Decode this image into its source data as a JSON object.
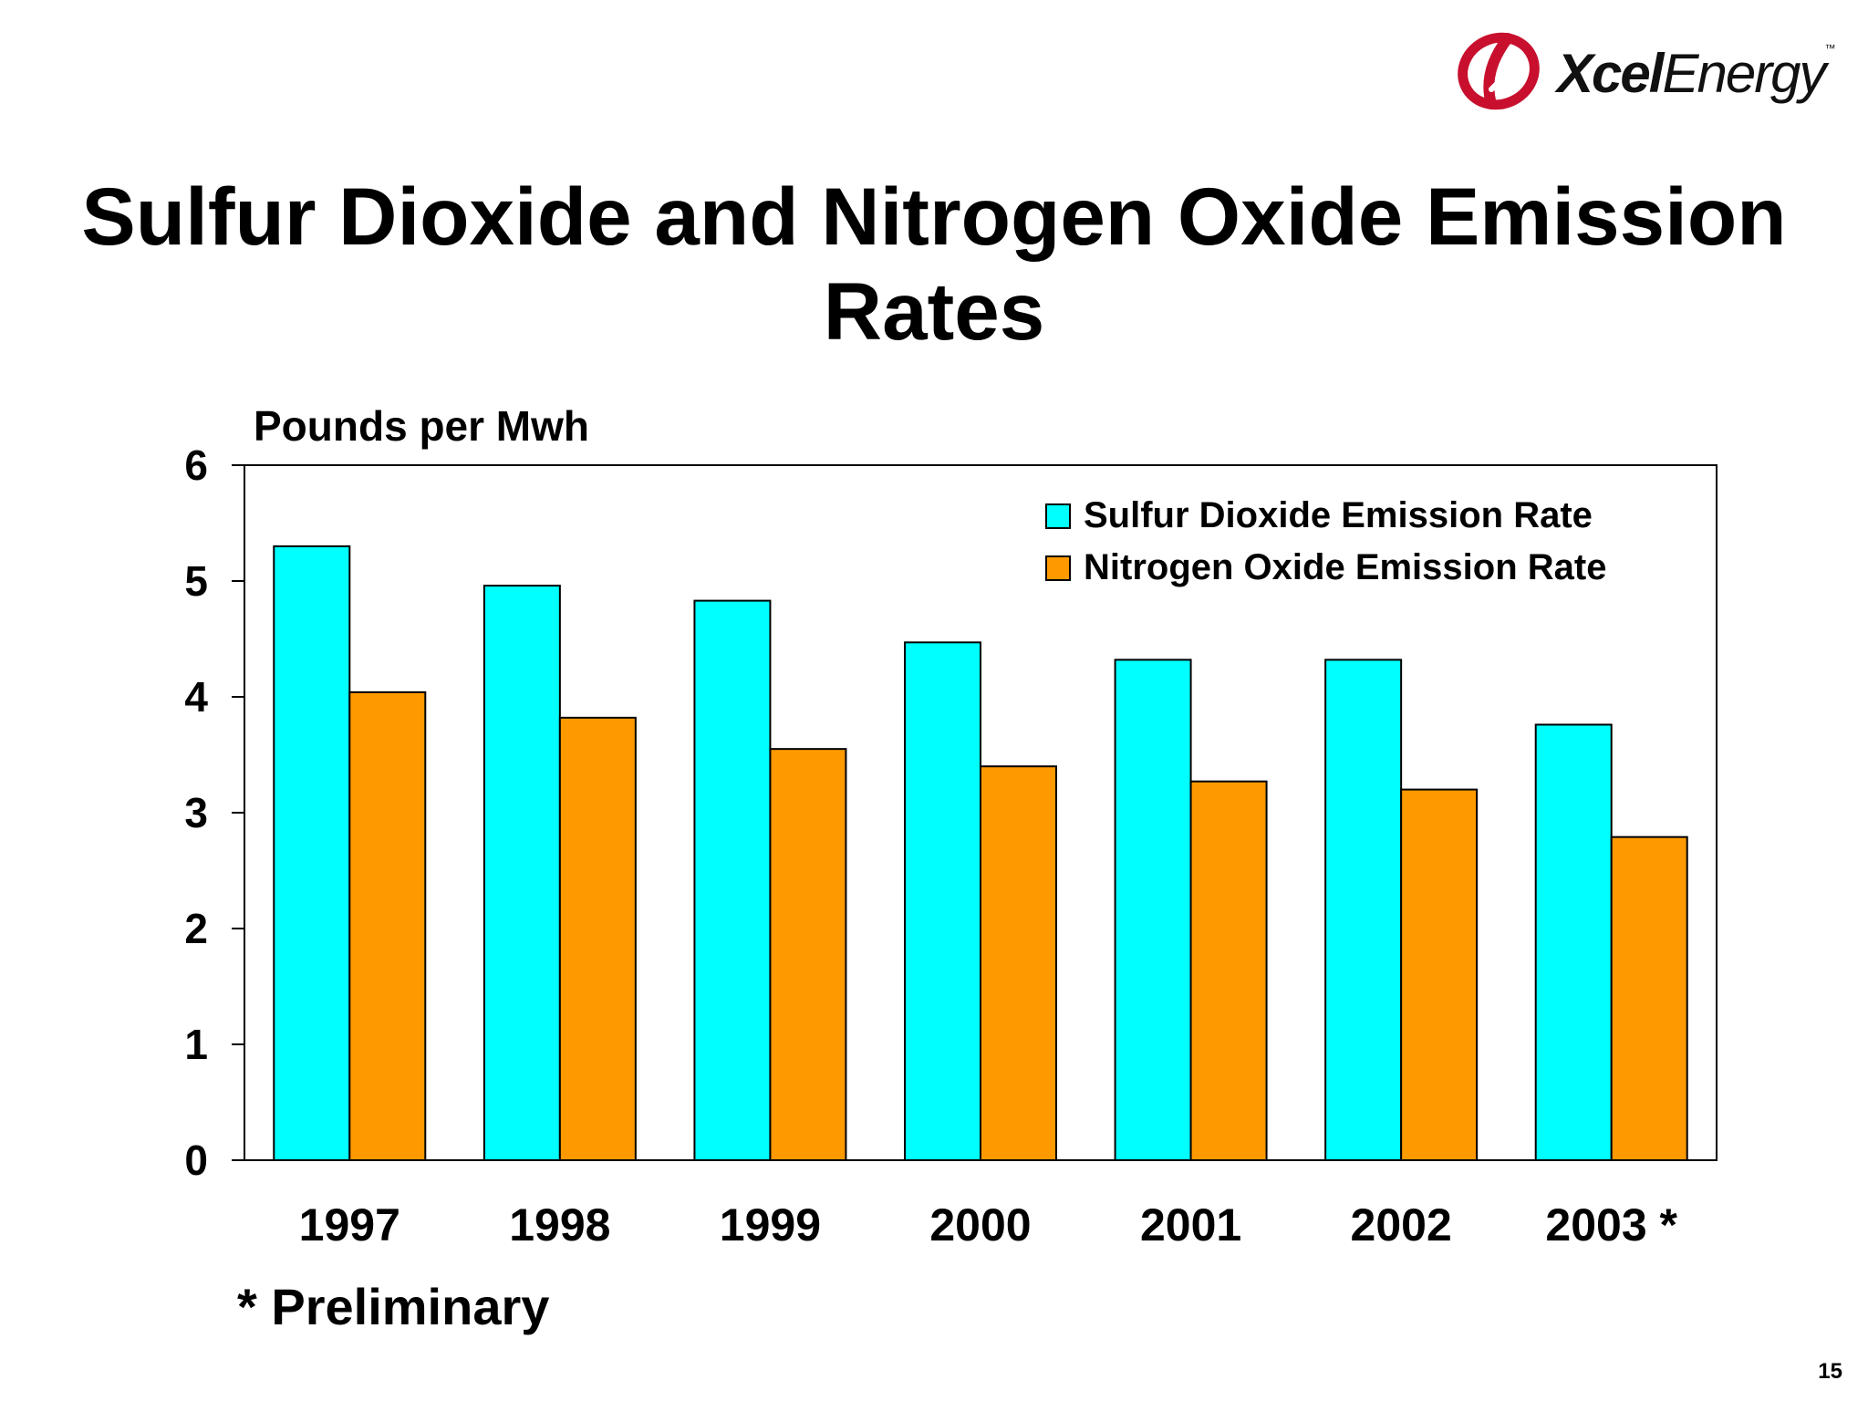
{
  "logo": {
    "brand_bold": "Xcel",
    "brand_light": "Energy",
    "trademark": "™"
  },
  "title": "Sulfur Dioxide and Nitrogen Oxide Emission Rates",
  "footnote": "* Preliminary",
  "page_number": "15",
  "colors": {
    "so2": "#00FFFF",
    "nox": "#FF9900",
    "axis": "#000000"
  },
  "chart_data": {
    "type": "bar",
    "title": "Sulfur Dioxide and Nitrogen Oxide Emission Rates",
    "ylabel": "Pounds per Mwh",
    "xlabel": "",
    "ylim": [
      0,
      6
    ],
    "yticks": [
      0,
      1,
      2,
      3,
      4,
      5,
      6
    ],
    "categories": [
      "1997",
      "1998",
      "1999",
      "2000",
      "2001",
      "2002",
      "2003 *"
    ],
    "series": [
      {
        "name": "Sulfur Dioxide Emission Rate",
        "color": "#00FFFF",
        "values": [
          5.3,
          4.96,
          4.83,
          4.47,
          4.32,
          4.32,
          3.76
        ]
      },
      {
        "name": "Nitrogen Oxide Emission Rate",
        "color": "#FF9900",
        "values": [
          4.04,
          3.82,
          3.55,
          3.4,
          3.27,
          3.2,
          2.79
        ]
      }
    ],
    "legend": "top-right",
    "grid": false
  }
}
